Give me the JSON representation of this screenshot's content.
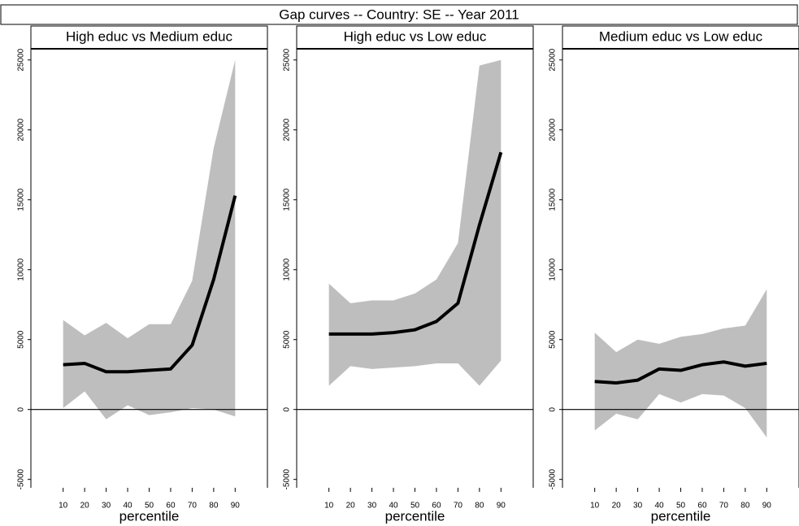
{
  "title": "Gap curves -- Country: SE -- Year 2011",
  "chart_data": [
    {
      "type": "line",
      "title": "High educ vs Medium educ",
      "xlabel": "percentile",
      "x": [
        10,
        20,
        30,
        40,
        50,
        60,
        70,
        80,
        90
      ],
      "values": [
        3200,
        3300,
        2700,
        2700,
        2800,
        2900,
        4600,
        9300,
        15300
      ],
      "upper": [
        6400,
        5300,
        6200,
        5100,
        6100,
        6100,
        9200,
        18700,
        25000
      ],
      "lower": [
        100,
        1300,
        -700,
        300,
        -400,
        -200,
        100,
        0,
        -500
      ],
      "color": "#000000",
      "band_color": "#bebebe",
      "reference_line": 0,
      "xlim": [
        -5,
        105
      ],
      "xticks": [
        10,
        20,
        30,
        40,
        50,
        60,
        70,
        80,
        90
      ],
      "ylim": [
        -5600,
        25800
      ],
      "yticks": [
        -5000,
        0,
        5000,
        10000,
        15000,
        20000,
        25000
      ]
    },
    {
      "type": "line",
      "title": "High educ vs Low educ",
      "xlabel": "percentile",
      "x": [
        10,
        20,
        30,
        40,
        50,
        60,
        70,
        80,
        90
      ],
      "values": [
        5400,
        5400,
        5400,
        5500,
        5700,
        6300,
        7600,
        13200,
        18400
      ],
      "upper": [
        9000,
        7600,
        7800,
        7800,
        8300,
        9300,
        11900,
        24600,
        25000
      ],
      "lower": [
        1700,
        3100,
        2900,
        3000,
        3100,
        3300,
        3300,
        1700,
        3500
      ],
      "color": "#000000",
      "band_color": "#bebebe",
      "reference_line": 0,
      "xlim": [
        -5,
        105
      ],
      "xticks": [
        10,
        20,
        30,
        40,
        50,
        60,
        70,
        80,
        90
      ],
      "ylim": [
        -5600,
        25800
      ],
      "yticks": [
        -5000,
        0,
        5000,
        10000,
        15000,
        20000,
        25000
      ]
    },
    {
      "type": "line",
      "title": "Medium educ vs Low educ",
      "xlabel": "percentile",
      "x": [
        10,
        20,
        30,
        40,
        50,
        60,
        70,
        80,
        90
      ],
      "values": [
        2000,
        1900,
        2100,
        2900,
        2800,
        3200,
        3400,
        3100,
        3300
      ],
      "upper": [
        5500,
        4100,
        5000,
        4700,
        5200,
        5400,
        5800,
        6000,
        8600
      ],
      "lower": [
        -1500,
        -300,
        -700,
        1100,
        500,
        1100,
        1000,
        100,
        -2000
      ],
      "color": "#000000",
      "band_color": "#bebebe",
      "reference_line": 0,
      "xlim": [
        -5,
        105
      ],
      "xticks": [
        10,
        20,
        30,
        40,
        50,
        60,
        70,
        80,
        90
      ],
      "ylim": [
        -5600,
        25800
      ],
      "yticks": [
        -5000,
        0,
        5000,
        10000,
        15000,
        20000,
        25000
      ]
    }
  ]
}
